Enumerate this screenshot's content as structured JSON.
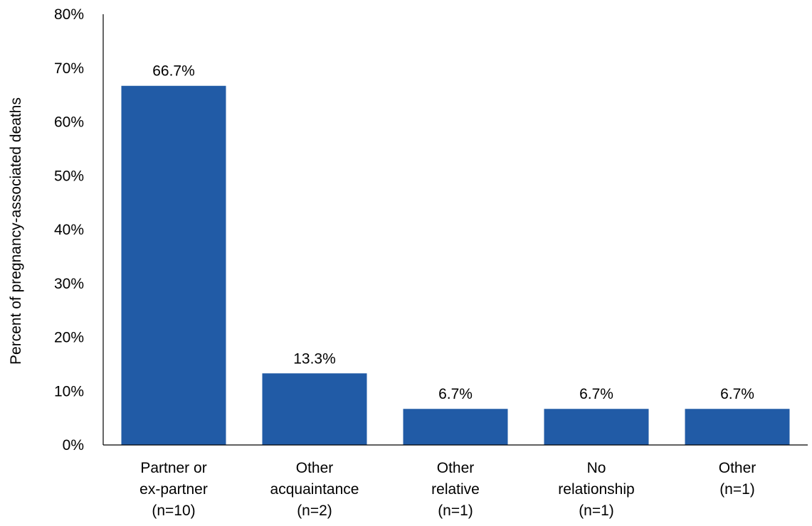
{
  "chart_data": {
    "type": "bar",
    "title": "",
    "xlabel": "",
    "ylabel": "Percent of pregnancy-associated deaths",
    "ylim": [
      0,
      80
    ],
    "yticks": [
      0,
      10,
      20,
      30,
      40,
      50,
      60,
      70,
      80
    ],
    "ytick_labels": [
      "0%",
      "10%",
      "20%",
      "30%",
      "40%",
      "50%",
      "60%",
      "70%",
      "80%"
    ],
    "grid": false,
    "bar_color": "#215BA6",
    "categories": [
      [
        "Partner or",
        "ex-partner",
        "(n=10)"
      ],
      [
        "Other",
        "acquaintance",
        "(n=2)"
      ],
      [
        "Other",
        "relative",
        "(n=1)"
      ],
      [
        "No",
        "relationship",
        "(n=1)"
      ],
      [
        "Other",
        "(n=1)"
      ]
    ],
    "values": [
      66.7,
      13.3,
      6.7,
      6.7,
      6.7
    ],
    "data_labels": [
      "66.7%",
      "13.3%",
      "6.7%",
      "6.7%",
      "6.7%"
    ]
  }
}
